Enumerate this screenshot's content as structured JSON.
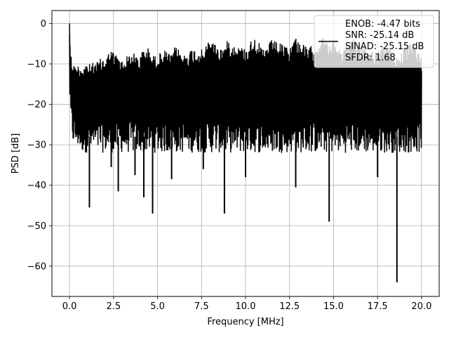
{
  "chart_data": {
    "type": "line",
    "title": "",
    "xlabel": "Frequency [MHz]",
    "ylabel": "PSD [dB]",
    "xlim": [
      -1.0,
      21.0
    ],
    "ylim": [
      -67.5,
      3.2
    ],
    "xticks": [
      0.0,
      2.5,
      5.0,
      7.5,
      10.0,
      12.5,
      15.0,
      17.5,
      20.0
    ],
    "xtick_labels": [
      "0.0",
      "2.5",
      "5.0",
      "7.5",
      "10.0",
      "12.5",
      "15.0",
      "17.5",
      "20.0"
    ],
    "yticks": [
      0,
      -10,
      -20,
      -30,
      -40,
      -50,
      -60
    ],
    "ytick_labels": [
      "0",
      "−10",
      "−20",
      "−30",
      "−40",
      "−50",
      "−60"
    ],
    "grid": true,
    "legend_position": "top-right",
    "legend_lines": [
      "ENOB: -4.47 bits",
      "SNR: -25.14 dB",
      "SINAD: -25.15 dB",
      "SFDR: 1.68"
    ],
    "series_color": "#000000",
    "series": [
      {
        "x": [
          0.0,
          0.02,
          0.05,
          0.1,
          0.2,
          0.3,
          0.5,
          0.7,
          1.0,
          1.13,
          1.5,
          2.0,
          2.37,
          2.77,
          3.0,
          3.5,
          3.72,
          4.0,
          4.22,
          4.5,
          4.72,
          5.0,
          5.5,
          5.8,
          6.0,
          6.5,
          7.0,
          7.6,
          8.0,
          8.5,
          8.8,
          9.0,
          9.5,
          10.0,
          10.5,
          11.0,
          11.5,
          12.0,
          12.5,
          12.85,
          13.0,
          13.5,
          14.0,
          14.5,
          14.75,
          15.0,
          15.5,
          16.0,
          16.5,
          17.0,
          17.5,
          18.0,
          18.6,
          19.0,
          19.5,
          20.0
        ],
        "lower": [
          0.0,
          -3.0,
          -8.0,
          -16.0,
          -22.0,
          -27.0,
          -29.0,
          -30.0,
          -31.0,
          -45.5,
          -31.0,
          -32.0,
          -35.5,
          -41.5,
          -31.0,
          -31.0,
          -37.5,
          -31.0,
          -43.0,
          -31.0,
          -47.0,
          -31.0,
          -33.0,
          -38.5,
          -31.0,
          -31.0,
          -31.0,
          -36.0,
          -31.0,
          -31.0,
          -47.0,
          -31.0,
          -31.0,
          -38.0,
          -31.0,
          -31.0,
          -31.0,
          -31.0,
          -31.0,
          -40.5,
          -31.0,
          -31.0,
          -31.0,
          -31.0,
          -49.0,
          -31.0,
          -31.0,
          -31.0,
          -31.0,
          -31.0,
          -38.0,
          -31.0,
          -64.0,
          -31.0,
          -31.0,
          -31.0
        ],
        "upper": [
          0.0,
          -2.0,
          -5.0,
          -8.0,
          -9.0,
          -10.5,
          -10.0,
          -10.0,
          -9.5,
          -10.0,
          -9.5,
          -8.0,
          -6.5,
          -8.0,
          -9.0,
          -7.0,
          -7.5,
          -8.0,
          -6.0,
          -6.0,
          -8.0,
          -7.5,
          -6.5,
          -8.0,
          -5.5,
          -7.5,
          -6.0,
          -6.5,
          -3.5,
          -6.0,
          -5.5,
          -4.0,
          -5.5,
          -6.0,
          -3.0,
          -6.5,
          -4.0,
          -5.0,
          -6.0,
          -3.0,
          -4.0,
          -6.0,
          -5.0,
          -3.0,
          -5.5,
          -4.0,
          -6.5,
          -4.0,
          -4.5,
          -6.0,
          -7.0,
          -5.0,
          -8.0,
          -6.0,
          -4.5,
          -8.0
        ],
        "typical_floor": [
          -16.0,
          -16.0,
          -20.0,
          -24.0,
          -26.0,
          -27.0,
          -27.0,
          -28.0,
          -28.0,
          -28.0,
          -28.0,
          -28.0,
          -28.0,
          -28.0,
          -28.0,
          -28.0,
          -28.0,
          -28.0,
          -28.0,
          -28.0,
          -28.0,
          -28.0,
          -28.0,
          -28.0,
          -28.0,
          -28.0,
          -28.0,
          -28.0,
          -28.0,
          -28.0,
          -28.0,
          -28.0,
          -28.0,
          -28.0,
          -28.0,
          -28.0,
          -28.0,
          -28.0,
          -28.0,
          -28.0,
          -28.0,
          -28.0,
          -28.0,
          -28.0,
          -28.0,
          -28.0,
          -28.0,
          -28.0,
          -28.0,
          -28.0,
          -28.0,
          -28.0,
          -28.0,
          -28.0,
          -28.0,
          -28.0
        ]
      }
    ]
  }
}
